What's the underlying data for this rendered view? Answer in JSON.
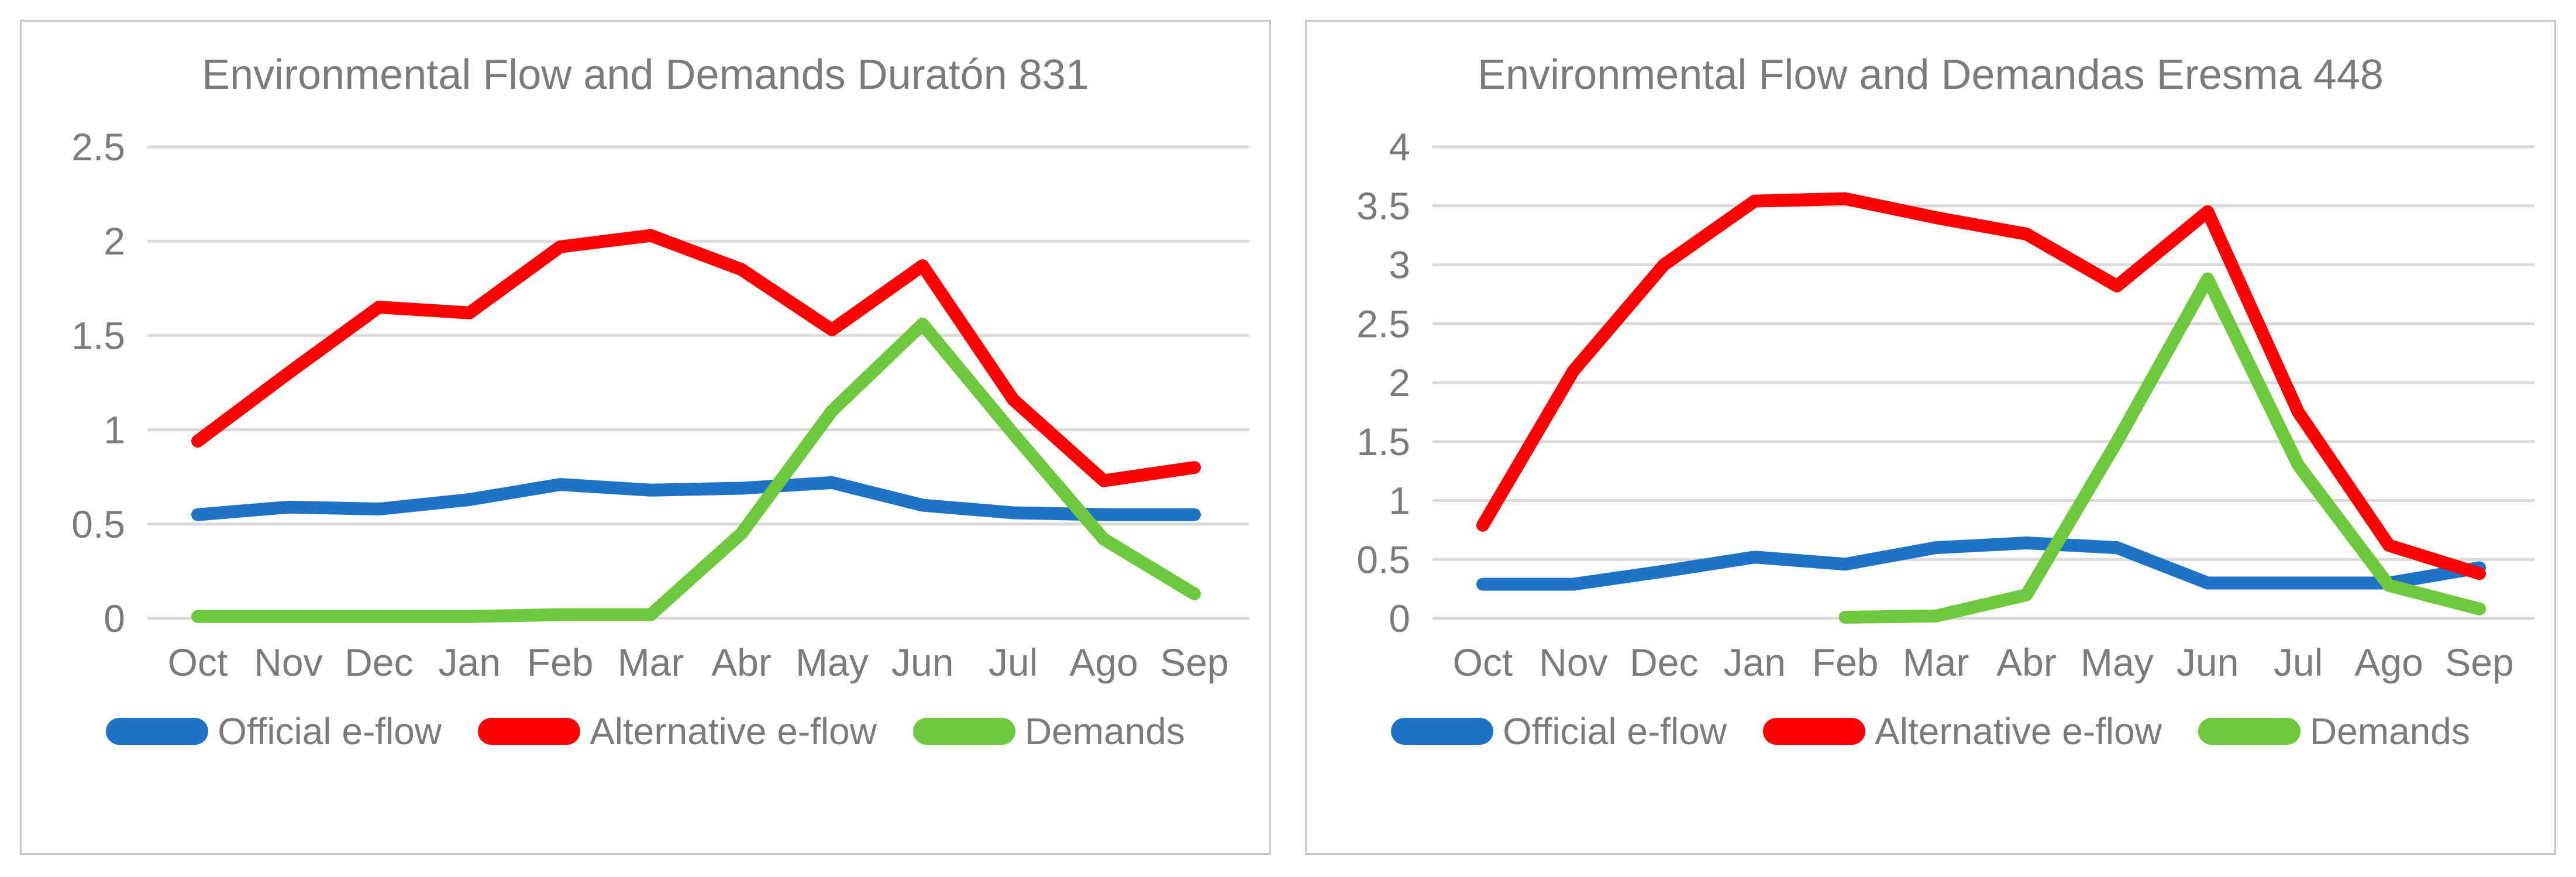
{
  "colors": {
    "official_eflow": "#1E73C8",
    "alternative_eflow": "#FE0000",
    "demands": "#6EC83C",
    "text_gray": "#7B7B7B",
    "gridline_gray": "#D9D9D9",
    "panel_border_gray": "#C7C7C7",
    "background": "#FFFFFF"
  },
  "chart_data": [
    {
      "type": "line",
      "title": "Environmental Flow and Demands Duratón 831",
      "categories": [
        "Oct",
        "Nov",
        "Dec",
        "Jan",
        "Feb",
        "Mar",
        "Abr",
        "May",
        "Jun",
        "Jul",
        "Ago",
        "Sep"
      ],
      "series": [
        {
          "name": "Official e-flow",
          "color": "#1E73C8",
          "values": [
            0.55,
            0.59,
            0.58,
            0.63,
            0.71,
            0.68,
            0.69,
            0.72,
            0.6,
            0.56,
            0.55,
            0.55
          ]
        },
        {
          "name": "Alternative e-flow",
          "color": "#FE0000",
          "values": [
            0.94,
            1.3,
            1.65,
            1.62,
            1.97,
            2.03,
            1.85,
            1.53,
            1.87,
            1.16,
            0.73,
            0.8
          ]
        },
        {
          "name": "Demands",
          "color": "#6EC83C",
          "values": [
            0.01,
            0.01,
            0.01,
            0.01,
            0.02,
            0.02,
            0.45,
            1.1,
            1.56,
            0.98,
            0.42,
            0.13
          ]
        }
      ],
      "xlabel": "",
      "ylabel": "",
      "ylim": [
        0,
        2.5
      ],
      "y_tick_step": 0.5,
      "y_tick_labels": [
        "0",
        "0.5",
        "1",
        "1.5",
        "2",
        "2.5"
      ],
      "grid": true,
      "legend_position": "bottom"
    },
    {
      "type": "line",
      "title": "Environmental Flow and Demandas Eresma 448",
      "categories": [
        "Oct",
        "Nov",
        "Dec",
        "Jan",
        "Feb",
        "Mar",
        "Abr",
        "May",
        "Jun",
        "Jul",
        "Ago",
        "Sep"
      ],
      "series": [
        {
          "name": "Official e-flow",
          "color": "#1E73C8",
          "values": [
            0.29,
            0.29,
            0.4,
            0.52,
            0.46,
            0.6,
            0.64,
            0.6,
            0.3,
            0.3,
            0.3,
            0.43
          ]
        },
        {
          "name": "Alternative e-flow",
          "color": "#FE0000",
          "values": [
            0.79,
            2.1,
            3.0,
            3.54,
            3.56,
            3.4,
            3.26,
            2.82,
            3.45,
            1.75,
            0.62,
            0.38
          ]
        },
        {
          "name": "Demands",
          "color": "#6EC83C",
          "values": [
            null,
            null,
            null,
            null,
            0.01,
            0.02,
            0.2,
            1.5,
            2.88,
            1.3,
            0.28,
            0.08
          ]
        }
      ],
      "xlabel": "",
      "ylabel": "",
      "ylim": [
        0,
        4
      ],
      "y_tick_step": 0.5,
      "y_tick_labels": [
        "0",
        "0.5",
        "1",
        "1.5",
        "2",
        "2.5",
        "3",
        "3.5",
        "4"
      ],
      "grid": true,
      "legend_position": "bottom"
    }
  ]
}
